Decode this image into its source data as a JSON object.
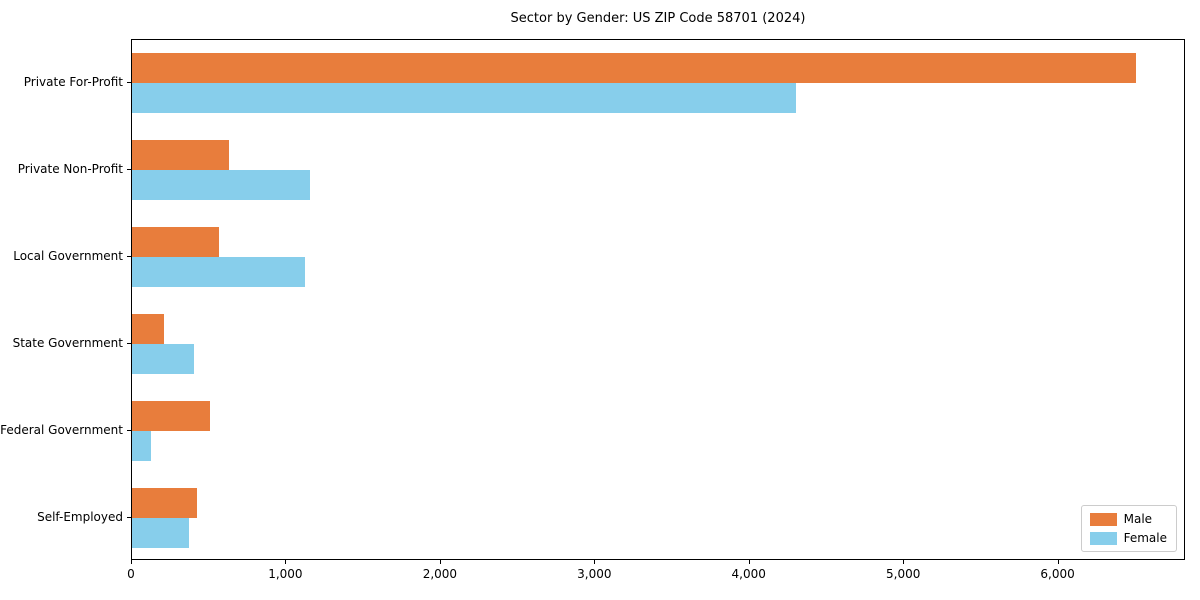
{
  "title": "Sector by Gender: US ZIP Code 58701 (2024)",
  "chart_data": {
    "type": "bar",
    "orientation": "horizontal",
    "title": "Sector by Gender: US ZIP Code 58701 (2024)",
    "xlabel": "",
    "ylabel": "",
    "categories": [
      "Private For-Profit",
      "Private Non-Profit",
      "Local Government",
      "State Government",
      "Federal Government",
      "Self-Employed"
    ],
    "series": [
      {
        "name": "Male",
        "color": "#e87d3c",
        "values": [
          6500,
          630,
          560,
          210,
          505,
          420
        ]
      },
      {
        "name": "Female",
        "color": "#87ceeb",
        "values": [
          4300,
          1150,
          1120,
          400,
          125,
          370
        ]
      }
    ],
    "xlim": [
      0,
      6825
    ],
    "xticks": [
      0,
      1000,
      2000,
      3000,
      4000,
      5000,
      6000
    ],
    "xtick_labels": [
      "0",
      "1,000",
      "2,000",
      "3,000",
      "4,000",
      "5,000",
      "6,000"
    ],
    "grid": false,
    "legend_position": "lower right",
    "axis_color": "#000000",
    "background_color": "#ffffff"
  }
}
